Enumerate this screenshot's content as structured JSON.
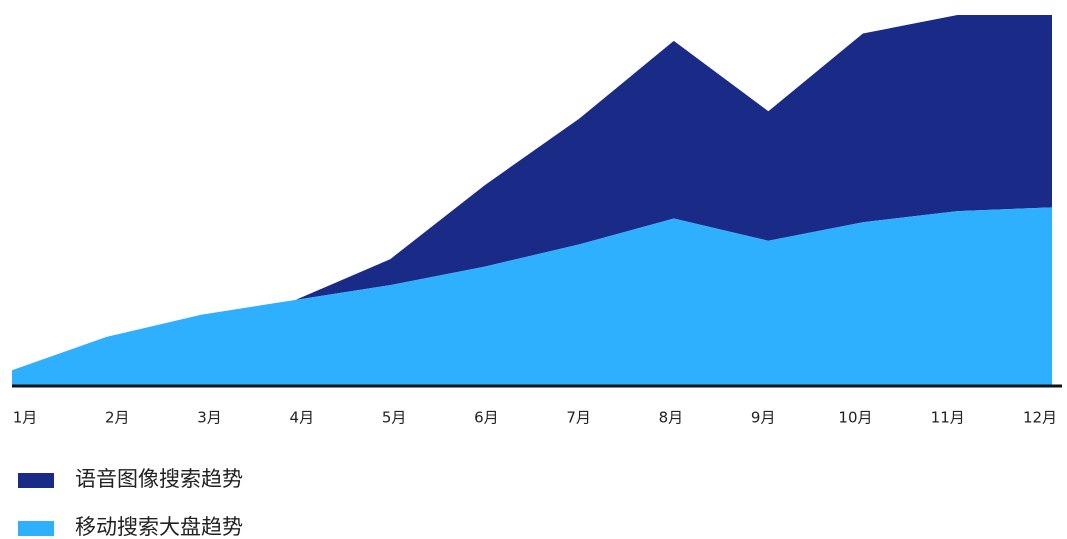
{
  "chart_data": {
    "type": "stacked-area",
    "categories": [
      "1月",
      "2月",
      "3月",
      "4月",
      "5月",
      "6月",
      "7月",
      "8月",
      "9月",
      "10月",
      "11月",
      "12月"
    ],
    "ylim": [
      0,
      100
    ],
    "series": [
      {
        "name": "移动搜索大盘趋势",
        "color": "#2eb0ff",
        "values": [
          4,
          13,
          19,
          23,
          27,
          32,
          38,
          45,
          39,
          44,
          47,
          48
        ]
      },
      {
        "name": "语音图像搜索趋势",
        "color": "#1a2a87",
        "values": [
          0,
          0,
          0,
          0,
          7,
          22,
          34,
          48,
          35,
          51,
          53,
          52
        ]
      }
    ]
  }
}
